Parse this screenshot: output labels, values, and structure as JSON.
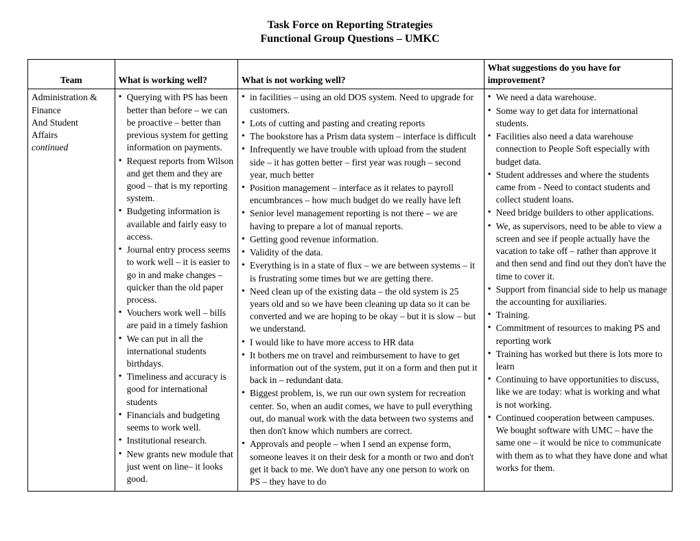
{
  "title": "Task Force on Reporting Strategies",
  "subtitle": "Functional Group Questions – UMKC",
  "columns": {
    "team": "Team",
    "workingWell": "What is working well?",
    "notWorkingWell": "What is not working well?",
    "suggestions": "What suggestions do you have for improvement?"
  },
  "row": {
    "team": {
      "line1": "Administration &",
      "line2": "Finance",
      "line3": "And Student",
      "line4": "Affairs",
      "line5": "continued"
    },
    "workingWell": [
      "Querying with PS has been better than before – we can be proactive – better than previous system for getting information on payments.",
      "Request reports from Wilson and get them and they are good – that is my reporting system.",
      "Budgeting information is available and fairly easy to access.",
      "Journal entry process seems to work well – it is easier to go in and make changes – quicker than the old paper process.",
      "Vouchers work well – bills are paid in a timely fashion",
      "We can put in all the international students birthdays.",
      "Timeliness and accuracy is good for international students",
      "Financials and budgeting seems to work well.",
      "Institutional research.",
      "New grants new module that just went on line– it looks good."
    ],
    "notWorkingWell": [
      "in facilities – using an old DOS system.  Need to upgrade for customers.",
      "Lots of cutting and pasting and creating reports",
      "The bookstore has a Prism data system – interface is difficult",
      "Infrequently we have trouble with upload from the student side – it has gotten better – first year was rough – second year, much better",
      "Position management – interface as it relates to payroll encumbrances – how much budget do we really have left",
      "Senior level management reporting is not there – we are having to prepare a lot of manual reports.",
      "Getting good revenue information.",
      "Validity of the data.",
      "Everything is in a state of flux – we are between systems – it is frustrating some times but we are getting there.",
      "Need clean up of the existing data – the old system is 25 years old and so we have been cleaning up data so it can be converted and we are hoping to be okay – but it is slow – but we understand.",
      "I would like to have more access to HR data",
      "It bothers me on travel and reimbursement to have to get information out of the system, put it on a form and then put it back in – redundant data.",
      "Biggest problem, is, we run our own system for recreation center. So, when an audit comes, we have to pull everything out, do manual work with the data between two systems and then don't know which numbers are correct.",
      "Approvals and people – when I send an expense form, someone leaves it on their desk for a month or two and don't get it back to me. We don't have any one person to work on PS – they have to do"
    ],
    "suggestions": [
      "We need a data warehouse.",
      "Some way to get data for international students.",
      "Facilities also need a data warehouse connection to People Soft especially with budget data.",
      "Student addresses and where the students came from - Need to contact students and collect student loans.",
      "Need bridge builders to other applications.",
      "We, as supervisors, need to be able to view a screen and see if people actually have the vacation to take off – rather than approve it and then send and find out they don't have the time to cover it.",
      "Support from financial side to help us manage the accounting for auxiliaries.",
      "Training.",
      "Commitment of resources to making PS and reporting work",
      "Training has worked but there is lots more to learn",
      "Continuing to have opportunities to discuss, like we are today: what is working and what is not working.",
      "Continued cooperation between campuses.  We bought software with UMC – have the same one – it would be nice to communicate with them as to what they have done and what works for them."
    ]
  }
}
